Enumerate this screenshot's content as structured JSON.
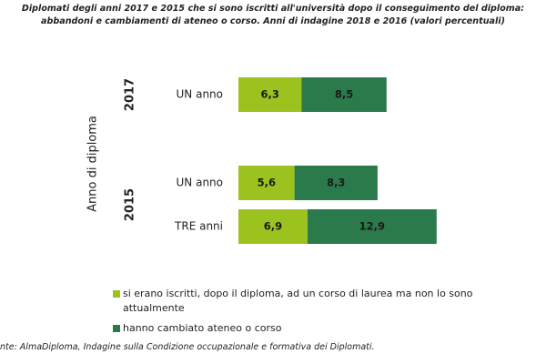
{
  "chart_data": {
    "type": "stacked-bar-horizontal",
    "title": "Diplomati degli anni 2017 e 2015 che si sono iscritti all'università dopo il conseguimento del diploma: abbandoni e cambiamenti di ateneo o corso. Anni di indagine 2018 e 2016 (valori percentuali)",
    "y_label": "Anno di diploma",
    "group_labels": [
      "2017",
      "2015"
    ],
    "categories": [
      "UN anno",
      "UN anno",
      "TRE anni"
    ],
    "series": [
      {
        "name": "si erano iscritti, dopo il diploma, ad un corso di laurea ma non lo sono attualmente",
        "color": "#9cc21f",
        "values": [
          6.3,
          5.6,
          6.9
        ],
        "value_labels": [
          "6,3",
          "5,6",
          "6,9"
        ]
      },
      {
        "name": "hanno cambiato ateneo o corso",
        "color": "#2b7a4b",
        "values": [
          8.5,
          8.3,
          12.9
        ],
        "value_labels": [
          "8,5",
          "8,3",
          "12,9"
        ]
      }
    ],
    "source": "nte: AlmaDiploma, Indagine sulla Condizione occupazionale e formativa dei Diplomati."
  }
}
